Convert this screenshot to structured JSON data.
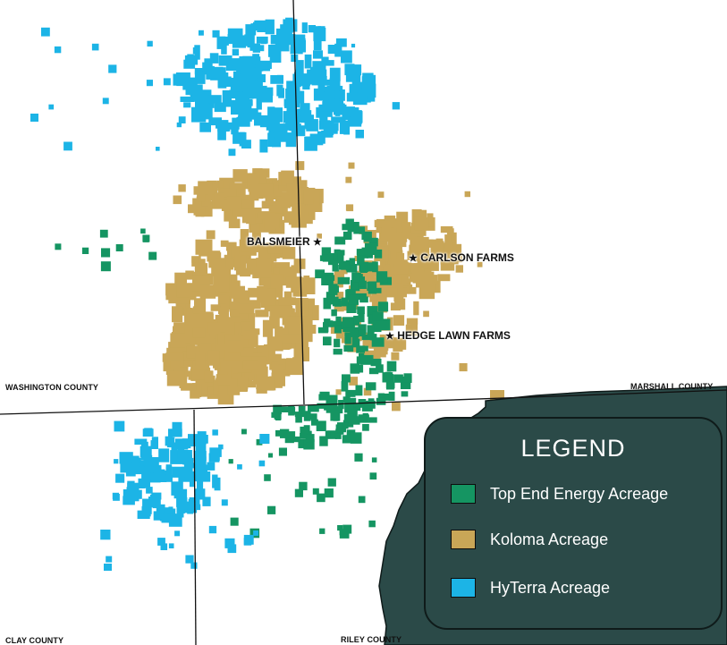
{
  "colors": {
    "top_end": "#159562",
    "koloma": "#c9a657",
    "hyterra": "#1cb4e6",
    "panel": "#2b4a48",
    "panel_border": "#0f1b1a",
    "county_line": "#111111"
  },
  "counties": {
    "washington": "WASHINGTON COUNTY",
    "marshall": "MARSHALL COUNTY",
    "clay": "CLAY COUNTY",
    "riley": "RILEY COUNTY"
  },
  "farms": {
    "balsmeier": {
      "label": "BALSMEIER",
      "star": "★"
    },
    "carlson": {
      "label": "CARLSON FARMS",
      "star": "★"
    },
    "hedge_lawn": {
      "label": "HEDGE LAWN FARMS",
      "star": "★"
    }
  },
  "legend": {
    "title": "LEGEND",
    "items": [
      {
        "label": "Top End Energy Acreage",
        "color": "#159562"
      },
      {
        "label": "Koloma Acreage",
        "color": "#c9a657"
      },
      {
        "label": "HyTerra Acreage",
        "color": "#1cb4e6"
      }
    ]
  }
}
